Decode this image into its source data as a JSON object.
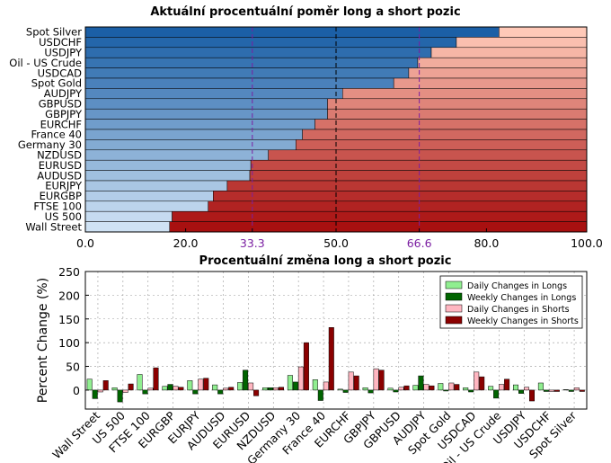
{
  "chart_data": [
    {
      "type": "bar",
      "orientation": "horizontal-stacked",
      "title": "Aktuální procentuální poměr long a short pozic",
      "categories": [
        "Spot Silver",
        "USDCHF",
        "USDJPY",
        "Oil - US Crude",
        "USDCAD",
        "Spot Gold",
        "AUDJPY",
        "GBPUSD",
        "GBPJPY",
        "EURCHF",
        "France 40",
        "Germany 30",
        "NZDUSD",
        "EURUSD",
        "AUDUSD",
        "EURJPY",
        "EURGBP",
        "FTSE 100",
        "US 500",
        "Wall Street"
      ],
      "series": [
        {
          "values": [
            82.5,
            74.0,
            69.0,
            66.3,
            64.5,
            61.5,
            51.3,
            48.3,
            48.3,
            45.8,
            43.3,
            42.0,
            36.5,
            33.0,
            32.8,
            28.3,
            25.5,
            24.5,
            17.3,
            16.8
          ]
        },
        {
          "values": [
            17.5,
            26.0,
            31.0,
            33.7,
            35.5,
            38.5,
            48.7,
            51.7,
            51.7,
            54.2,
            56.7,
            58.0,
            63.5,
            67.0,
            67.2,
            71.7,
            74.5,
            75.5,
            82.7,
            83.2
          ]
        }
      ],
      "xlim": [
        0,
        100
      ],
      "xticks": [
        "0.0",
        "20.0",
        "33.3",
        "50.0",
        "66.6",
        "80.0",
        "100.0"
      ],
      "reference_lines": [
        33.3,
        50.0,
        66.6
      ],
      "colors": {
        "long_dark": "#1b5fa6",
        "long_light": "#cfe2f4",
        "short_dark": "#a81010",
        "short_light": "#ffc9b8",
        "ref_purple": "#7b1fa2",
        "ref_black": "#000000",
        "tick_purple": "#7b1fa2"
      }
    },
    {
      "type": "bar",
      "orientation": "vertical-grouped",
      "title": "Procentuální změna long a short pozic",
      "ylabel": "Percent Change (%)",
      "ylim": [
        -40,
        250
      ],
      "yticks": [
        "0",
        "50",
        "100",
        "150",
        "200",
        "250"
      ],
      "categories": [
        "Wall Street",
        "US 500",
        "FTSE 100",
        "EURGBP",
        "EURJPY",
        "AUDUSD",
        "EURUSD",
        "NZDUSD",
        "Germany 30",
        "France 40",
        "EURCHF",
        "GBPJPY",
        "GBPUSD",
        "AUDJPY",
        "Spot Gold",
        "USDCAD",
        "Oil - US Crude",
        "USDJPY",
        "USDCHF",
        "Spot Silver"
      ],
      "series": [
        {
          "name": "Daily Changes in Longs",
          "color": "#90ee90",
          "values": [
            23,
            5,
            33,
            8,
            20,
            11,
            16,
            5,
            31,
            22,
            2,
            5,
            4,
            10,
            14,
            5,
            8,
            11,
            15,
            1
          ]
        },
        {
          "name": "Weekly Changes in Longs",
          "color": "#006400",
          "values": [
            -18,
            -25,
            -8,
            12,
            -8,
            -8,
            42,
            5,
            17,
            -22,
            -5,
            -6,
            -4,
            30,
            -2,
            -4,
            -17,
            -7,
            -3,
            -3
          ]
        },
        {
          "name": "Daily Changes in Shorts",
          "color": "#ffb6c1",
          "values": [
            -4,
            -5,
            4,
            8,
            23,
            4,
            15,
            5,
            49,
            17,
            38,
            45,
            6,
            12,
            15,
            38,
            12,
            6,
            -3,
            5
          ]
        },
        {
          "name": "Weekly Changes in Shorts",
          "color": "#8b0000",
          "values": [
            20,
            13,
            47,
            6,
            25,
            6,
            -12,
            6,
            100,
            132,
            30,
            42,
            9,
            9,
            12,
            28,
            23,
            -23,
            -3,
            -3
          ]
        }
      ],
      "legend": "top-right",
      "grid": true
    }
  ]
}
